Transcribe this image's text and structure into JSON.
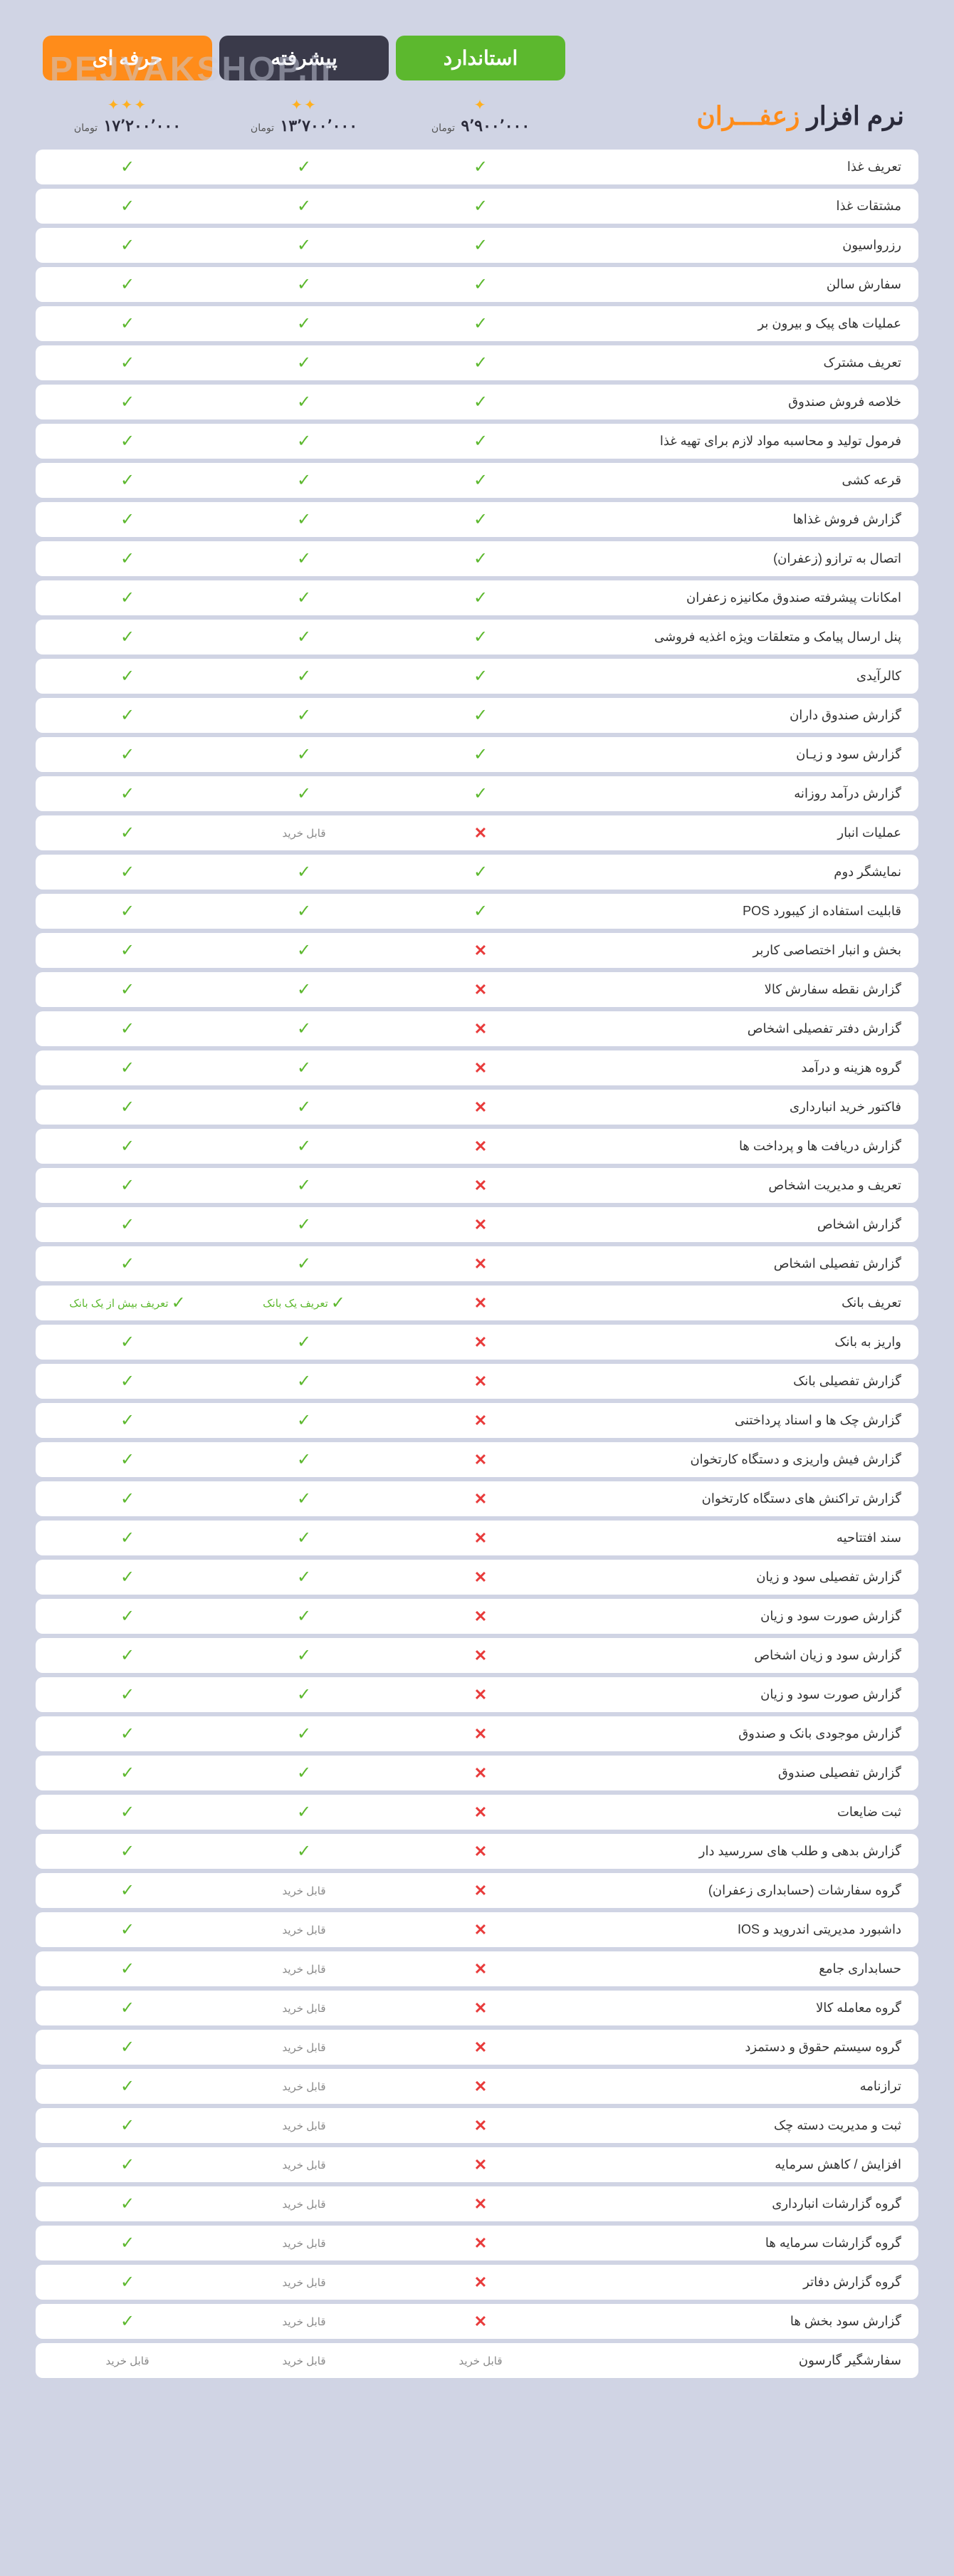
{
  "watermark": "PEJVAKSHOP.ir",
  "title_prefix": "نرم افزار",
  "title_saffron": "زعفـــران",
  "plans": {
    "professional": {
      "label": "حرفه ای",
      "stars": "✦✦✦",
      "price": "۱۷٬۲۰۰٬۰۰۰",
      "currency": "تومان",
      "bg": "#ff8c1a"
    },
    "advanced": {
      "label": "پیشرفته",
      "stars": "✦✦",
      "price": "۱۳٬۷۰۰٬۰۰۰",
      "currency": "تومان",
      "bg": "#3a3a4a"
    },
    "standard": {
      "label": "استاندارد",
      "stars": "✦",
      "price": "۹٬۹۰۰٬۰۰۰",
      "currency": "تومان",
      "bg": "#5cb82e"
    }
  },
  "labels": {
    "purchasable": "قابل خرید",
    "one_bank": "تعریف یک بانک",
    "multi_bank": "تعریف بیش از یک بانک"
  },
  "colors": {
    "check": "#5cb82e",
    "cross": "#e83a3a",
    "row_bg": "#ffffff",
    "page_bg": "#d0d4e4"
  },
  "features": [
    {
      "name": "تعریف غذا",
      "std": "check",
      "adv": "check",
      "pro": "check"
    },
    {
      "name": "مشتقات غذا",
      "std": "check",
      "adv": "check",
      "pro": "check"
    },
    {
      "name": "رزرواسیون",
      "std": "check",
      "adv": "check",
      "pro": "check"
    },
    {
      "name": "سفارش سالن",
      "std": "check",
      "adv": "check",
      "pro": "check"
    },
    {
      "name": "عملیات های پیک و بیرون بر",
      "std": "check",
      "adv": "check",
      "pro": "check"
    },
    {
      "name": "تعریف مشترک",
      "std": "check",
      "adv": "check",
      "pro": "check"
    },
    {
      "name": "خلاصه فروش صندوق",
      "std": "check",
      "adv": "check",
      "pro": "check"
    },
    {
      "name": "فرمول تولید و محاسبه مواد لازم برای تهیه غذا",
      "std": "check",
      "adv": "check",
      "pro": "check"
    },
    {
      "name": "قرعه کشی",
      "std": "check",
      "adv": "check",
      "pro": "check"
    },
    {
      "name": "گزارش فروش غذاها",
      "std": "check",
      "adv": "check",
      "pro": "check"
    },
    {
      "name": "اتصال به ترازو (زعفران)",
      "std": "check",
      "adv": "check",
      "pro": "check"
    },
    {
      "name": "امکانات پیشرفته صندوق مکانیزه زعفران",
      "std": "check",
      "adv": "check",
      "pro": "check"
    },
    {
      "name": "پنل ارسال پیامک و متعلقات ویژه اغذیه فروشی",
      "std": "check",
      "adv": "check",
      "pro": "check"
    },
    {
      "name": "کالرآیدی",
      "std": "check",
      "adv": "check",
      "pro": "check"
    },
    {
      "name": "گزارش صندوق داران",
      "std": "check",
      "adv": "check",
      "pro": "check"
    },
    {
      "name": "گزارش سود و زیـان",
      "std": "check",
      "adv": "check",
      "pro": "check"
    },
    {
      "name": "گزارش درآمد روزانه",
      "std": "check",
      "adv": "check",
      "pro": "check"
    },
    {
      "name": "عملیات انبار",
      "std": "cross",
      "adv": "purchasable",
      "pro": "check"
    },
    {
      "name": "نمایشگر دوم",
      "std": "check",
      "adv": "check",
      "pro": "check"
    },
    {
      "name": "قابلیت استفاده از کیبورد POS",
      "std": "check",
      "adv": "check",
      "pro": "check"
    },
    {
      "name": "بخش و انبار اختصاصی کاربر",
      "std": "cross",
      "adv": "check",
      "pro": "check"
    },
    {
      "name": "گزارش نقطه سفارش کالا",
      "std": "cross",
      "adv": "check",
      "pro": "check"
    },
    {
      "name": "گزارش دفتر تفصیلی اشخاص",
      "std": "cross",
      "adv": "check",
      "pro": "check"
    },
    {
      "name": "گروه هزینه و درآمد",
      "std": "cross",
      "adv": "check",
      "pro": "check"
    },
    {
      "name": "فاکتور خرید انبارداری",
      "std": "cross",
      "adv": "check",
      "pro": "check"
    },
    {
      "name": "گزارش دریافت ها و پرداخت ها",
      "std": "cross",
      "adv": "check",
      "pro": "check"
    },
    {
      "name": "تعریف و مدیریت اشخاص",
      "std": "cross",
      "adv": "check",
      "pro": "check"
    },
    {
      "name": "گزارش اشخاص",
      "std": "cross",
      "adv": "check",
      "pro": "check"
    },
    {
      "name": "گزارش تفصیلی اشخاص",
      "std": "cross",
      "adv": "check",
      "pro": "check"
    },
    {
      "name": "تعریف بانک",
      "std": "cross",
      "adv": "one_bank",
      "pro": "multi_bank"
    },
    {
      "name": "واریز به بانک",
      "std": "cross",
      "adv": "check",
      "pro": "check"
    },
    {
      "name": "گزارش تفصیلی بانک",
      "std": "cross",
      "adv": "check",
      "pro": "check"
    },
    {
      "name": "گزارش چک ها و اسناد پرداختنی",
      "std": "cross",
      "adv": "check",
      "pro": "check"
    },
    {
      "name": "گزارش فیش واریزی و دستگاه کارتخوان",
      "std": "cross",
      "adv": "check",
      "pro": "check"
    },
    {
      "name": "گزارش تراکنش های دستگاه کارتخوان",
      "std": "cross",
      "adv": "check",
      "pro": "check"
    },
    {
      "name": "سند افتتاحیه",
      "std": "cross",
      "adv": "check",
      "pro": "check"
    },
    {
      "name": "گزارش تفصیلی سود و زیان",
      "std": "cross",
      "adv": "check",
      "pro": "check"
    },
    {
      "name": "گزارش صورت سود و زیان",
      "std": "cross",
      "adv": "check",
      "pro": "check"
    },
    {
      "name": "گزارش سود و زیان اشخاص",
      "std": "cross",
      "adv": "check",
      "pro": "check"
    },
    {
      "name": "گزارش صورت سود و زیان",
      "std": "cross",
      "adv": "check",
      "pro": "check"
    },
    {
      "name": "گزارش موجودی بانک و صندوق",
      "std": "cross",
      "adv": "check",
      "pro": "check"
    },
    {
      "name": "گزارش تفصیلی صندوق",
      "std": "cross",
      "adv": "check",
      "pro": "check"
    },
    {
      "name": "ثبت ضایعات",
      "std": "cross",
      "adv": "check",
      "pro": "check"
    },
    {
      "name": "گزارش بدهی و طلب های سررسید دار",
      "std": "cross",
      "adv": "check",
      "pro": "check"
    },
    {
      "name": "گروه سفارشات (حسابداری زعفران)",
      "std": "cross",
      "adv": "purchasable",
      "pro": "check"
    },
    {
      "name": "داشبورد مدیریتی اندروید و IOS",
      "std": "cross",
      "adv": "purchasable",
      "pro": "check"
    },
    {
      "name": "حسابداری جامع",
      "std": "cross",
      "adv": "purchasable",
      "pro": "check"
    },
    {
      "name": "گروه معامله کالا",
      "std": "cross",
      "adv": "purchasable",
      "pro": "check"
    },
    {
      "name": "گروه سیستم حقوق و دستمزد",
      "std": "cross",
      "adv": "purchasable",
      "pro": "check"
    },
    {
      "name": "ترازنامه",
      "std": "cross",
      "adv": "purchasable",
      "pro": "check"
    },
    {
      "name": "ثبت و مدیریت دسته چک",
      "std": "cross",
      "adv": "purchasable",
      "pro": "check"
    },
    {
      "name": "افزایش / کاهش سرمایه",
      "std": "cross",
      "adv": "purchasable",
      "pro": "check"
    },
    {
      "name": "گروه گزارشات انبارداری",
      "std": "cross",
      "adv": "purchasable",
      "pro": "check"
    },
    {
      "name": "گروه گزارشات سرمایه ها",
      "std": "cross",
      "adv": "purchasable",
      "pro": "check"
    },
    {
      "name": "گروه گزارش دفاتر",
      "std": "cross",
      "adv": "purchasable",
      "pro": "check"
    },
    {
      "name": "گزارش سود بخش ها",
      "std": "cross",
      "adv": "purchasable",
      "pro": "check"
    },
    {
      "name": "سفارشگیر گارسون",
      "std": "purchasable",
      "adv": "purchasable",
      "pro": "purchasable"
    }
  ]
}
